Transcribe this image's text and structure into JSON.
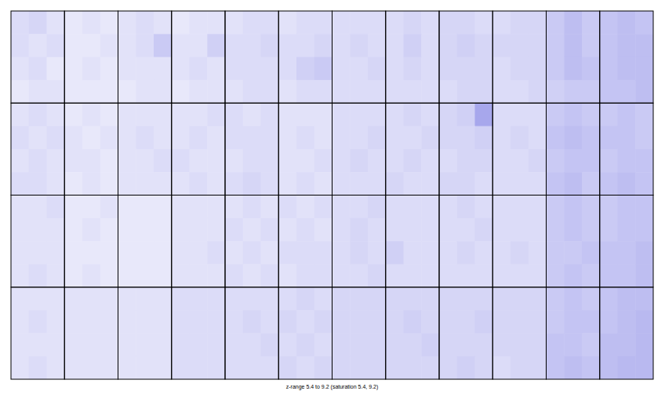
{
  "chart_data": {
    "type": "heatmap",
    "title": "z-range 5.4 to 9.2 (saturation 5.4, 9.2)",
    "zlim": [
      5.4,
      9.2
    ],
    "color": "#2020d0",
    "cells": [
      [
        [
          [
            6.0,
            6.1,
            5.9
          ],
          [
            6.0,
            5.9,
            6.0
          ],
          [
            5.9,
            6.0,
            5.8
          ],
          [
            5.8,
            5.9,
            5.9
          ]
        ],
        [
          [
            5.8,
            5.9,
            5.8
          ],
          [
            5.8,
            5.8,
            5.9
          ],
          [
            5.8,
            5.9,
            5.8
          ],
          [
            5.8,
            5.8,
            5.8
          ]
        ],
        [
          [
            5.9,
            6.0,
            5.9
          ],
          [
            5.9,
            6.0,
            6.3
          ],
          [
            5.9,
            5.9,
            5.9
          ],
          [
            5.8,
            5.9,
            5.9
          ]
        ],
        [
          [
            5.8,
            5.9,
            5.9
          ],
          [
            5.9,
            5.9,
            6.2
          ],
          [
            5.9,
            6.0,
            5.9
          ],
          [
            5.8,
            5.9,
            5.9
          ]
        ],
        [
          [
            5.9,
            6.0,
            6.0
          ],
          [
            6.0,
            6.0,
            6.1
          ],
          [
            6.0,
            6.0,
            6.0
          ],
          [
            5.9,
            6.0,
            6.0
          ]
        ],
        [
          [
            5.9,
            6.0,
            6.0
          ],
          [
            6.0,
            6.0,
            6.1
          ],
          [
            6.0,
            6.2,
            6.3
          ],
          [
            5.9,
            6.0,
            6.0
          ]
        ],
        [
          [
            6.0,
            6.0,
            6.0
          ],
          [
            6.0,
            6.1,
            6.0
          ],
          [
            6.0,
            6.0,
            6.1
          ],
          [
            6.0,
            6.0,
            6.0
          ]
        ],
        [
          [
            6.0,
            6.1,
            6.0
          ],
          [
            6.0,
            6.2,
            6.0
          ],
          [
            6.0,
            6.1,
            6.0
          ],
          [
            6.0,
            6.0,
            6.0
          ]
        ],
        [
          [
            6.1,
            6.1,
            6.0
          ],
          [
            6.1,
            6.2,
            6.1
          ],
          [
            6.1,
            6.1,
            6.1
          ],
          [
            6.0,
            6.1,
            6.1
          ]
        ],
        [
          [
            6.0,
            6.1,
            6.1
          ],
          [
            6.1,
            6.1,
            6.1
          ],
          [
            6.0,
            6.1,
            6.1
          ],
          [
            6.0,
            6.0,
            6.1
          ]
        ],
        [
          [
            6.3,
            6.5,
            6.3
          ],
          [
            6.3,
            6.5,
            6.3
          ],
          [
            6.3,
            6.5,
            6.4
          ],
          [
            6.2,
            6.3,
            6.3
          ]
        ],
        [
          [
            6.4,
            6.5,
            6.4
          ],
          [
            6.4,
            6.5,
            6.5
          ],
          [
            6.4,
            6.5,
            6.5
          ],
          [
            6.4,
            6.4,
            6.5
          ]
        ]
      ],
      [
        [
          [
            5.9,
            6.0,
            5.9
          ],
          [
            6.0,
            5.9,
            6.0
          ],
          [
            5.9,
            6.0,
            5.9
          ],
          [
            6.0,
            6.0,
            5.9
          ]
        ],
        [
          [
            5.8,
            5.9,
            5.8
          ],
          [
            5.9,
            5.8,
            5.9
          ],
          [
            5.9,
            5.9,
            5.8
          ],
          [
            5.8,
            5.9,
            5.8
          ]
        ],
        [
          [
            5.9,
            5.9,
            5.9
          ],
          [
            5.9,
            6.0,
            5.9
          ],
          [
            5.9,
            5.9,
            6.0
          ],
          [
            5.9,
            5.9,
            5.9
          ]
        ],
        [
          [
            5.9,
            5.9,
            6.0
          ],
          [
            5.9,
            6.0,
            5.9
          ],
          [
            6.0,
            5.9,
            5.9
          ],
          [
            5.9,
            6.0,
            5.9
          ]
        ],
        [
          [
            6.0,
            5.9,
            6.0
          ],
          [
            6.0,
            6.0,
            6.0
          ],
          [
            5.9,
            6.0,
            6.0
          ],
          [
            6.0,
            6.1,
            6.0
          ]
        ],
        [
          [
            5.9,
            5.9,
            5.9
          ],
          [
            5.9,
            6.0,
            5.9
          ],
          [
            5.9,
            5.9,
            6.0
          ],
          [
            5.9,
            6.0,
            5.9
          ]
        ],
        [
          [
            6.0,
            6.0,
            6.0
          ],
          [
            6.0,
            6.0,
            6.1
          ],
          [
            6.0,
            6.1,
            6.0
          ],
          [
            6.0,
            6.0,
            6.0
          ]
        ],
        [
          [
            6.0,
            6.1,
            6.0
          ],
          [
            6.0,
            6.0,
            6.1
          ],
          [
            6.0,
            6.1,
            6.0
          ],
          [
            6.1,
            6.0,
            6.0
          ]
        ],
        [
          [
            6.1,
            6.2,
            6.9
          ],
          [
            6.1,
            6.1,
            6.2
          ],
          [
            6.0,
            6.1,
            6.1
          ],
          [
            6.1,
            6.1,
            6.0
          ]
        ],
        [
          [
            6.0,
            6.0,
            6.0
          ],
          [
            6.0,
            6.1,
            6.0
          ],
          [
            6.0,
            6.0,
            6.1
          ],
          [
            6.0,
            6.0,
            6.0
          ]
        ],
        [
          [
            6.3,
            6.4,
            6.3
          ],
          [
            6.4,
            6.5,
            6.4
          ],
          [
            6.3,
            6.4,
            6.4
          ],
          [
            6.4,
            6.5,
            6.3
          ]
        ],
        [
          [
            6.3,
            6.4,
            6.3
          ],
          [
            6.4,
            6.4,
            6.3
          ],
          [
            6.3,
            6.4,
            6.4
          ],
          [
            6.4,
            6.5,
            6.4
          ]
        ]
      ],
      [
        [
          [
            5.9,
            5.9,
            6.0
          ],
          [
            5.9,
            5.9,
            5.9
          ],
          [
            5.9,
            5.9,
            5.9
          ],
          [
            5.9,
            6.0,
            5.9
          ]
        ],
        [
          [
            5.8,
            5.8,
            5.9
          ],
          [
            5.8,
            5.9,
            5.8
          ],
          [
            5.8,
            5.8,
            5.8
          ],
          [
            5.8,
            5.9,
            5.8
          ]
        ],
        [
          [
            5.8,
            5.8,
            5.8
          ],
          [
            5.8,
            5.8,
            5.8
          ],
          [
            5.8,
            5.8,
            5.8
          ],
          [
            5.8,
            5.8,
            5.8
          ]
        ],
        [
          [
            5.9,
            5.9,
            5.9
          ],
          [
            5.9,
            5.9,
            5.9
          ],
          [
            5.9,
            5.9,
            6.0
          ],
          [
            5.9,
            5.9,
            5.9
          ]
        ],
        [
          [
            5.9,
            6.0,
            5.9
          ],
          [
            6.0,
            5.9,
            6.0
          ],
          [
            5.9,
            6.0,
            5.9
          ],
          [
            6.0,
            5.9,
            6.0
          ]
        ],
        [
          [
            6.0,
            5.9,
            6.0
          ],
          [
            5.9,
            6.0,
            5.9
          ],
          [
            6.0,
            6.0,
            6.0
          ],
          [
            5.9,
            6.0,
            6.0
          ]
        ],
        [
          [
            6.0,
            6.0,
            6.1
          ],
          [
            6.0,
            6.1,
            6.0
          ],
          [
            6.0,
            6.1,
            6.0
          ],
          [
            6.0,
            6.0,
            6.1
          ]
        ],
        [
          [
            6.0,
            6.0,
            6.0
          ],
          [
            6.0,
            6.0,
            6.0
          ],
          [
            6.2,
            6.0,
            6.0
          ],
          [
            6.0,
            6.0,
            6.0
          ]
        ],
        [
          [
            6.0,
            6.1,
            6.0
          ],
          [
            6.0,
            6.0,
            6.1
          ],
          [
            6.0,
            6.1,
            6.0
          ],
          [
            6.0,
            6.0,
            6.0
          ]
        ],
        [
          [
            6.0,
            6.0,
            6.0
          ],
          [
            6.0,
            6.0,
            6.0
          ],
          [
            6.0,
            6.1,
            6.0
          ],
          [
            6.0,
            6.0,
            6.0
          ]
        ],
        [
          [
            6.3,
            6.4,
            6.3
          ],
          [
            6.3,
            6.4,
            6.3
          ],
          [
            6.3,
            6.3,
            6.4
          ],
          [
            6.3,
            6.4,
            6.3
          ]
        ],
        [
          [
            6.3,
            6.4,
            6.4
          ],
          [
            6.3,
            6.4,
            6.4
          ],
          [
            6.4,
            6.4,
            6.5
          ],
          [
            6.4,
            6.4,
            6.5
          ]
        ]
      ],
      [
        [
          [
            5.9,
            5.9,
            5.9
          ],
          [
            5.9,
            6.0,
            5.9
          ],
          [
            5.9,
            5.9,
            5.9
          ],
          [
            5.9,
            6.0,
            5.9
          ]
        ],
        [
          [
            5.9,
            5.9,
            5.9
          ],
          [
            5.9,
            5.9,
            5.9
          ],
          [
            5.9,
            5.9,
            5.9
          ],
          [
            5.9,
            5.9,
            5.9
          ]
        ],
        [
          [
            5.9,
            5.9,
            5.9
          ],
          [
            5.9,
            5.9,
            5.9
          ],
          [
            5.9,
            5.9,
            5.9
          ],
          [
            5.9,
            5.9,
            5.9
          ]
        ],
        [
          [
            6.0,
            6.0,
            6.0
          ],
          [
            6.0,
            6.0,
            6.0
          ],
          [
            6.0,
            6.0,
            6.0
          ],
          [
            6.0,
            6.0,
            6.0
          ]
        ],
        [
          [
            6.0,
            6.0,
            6.0
          ],
          [
            6.0,
            6.1,
            6.0
          ],
          [
            6.0,
            6.0,
            6.1
          ],
          [
            6.0,
            6.0,
            6.0
          ]
        ],
        [
          [
            6.0,
            6.1,
            6.0
          ],
          [
            6.1,
            6.0,
            6.1
          ],
          [
            6.0,
            6.1,
            6.0
          ],
          [
            6.1,
            6.0,
            6.1
          ]
        ],
        [
          [
            6.1,
            6.1,
            6.1
          ],
          [
            6.1,
            6.1,
            6.1
          ],
          [
            6.1,
            6.1,
            6.1
          ],
          [
            6.1,
            6.1,
            6.1
          ]
        ],
        [
          [
            6.1,
            6.1,
            6.1
          ],
          [
            6.1,
            6.2,
            6.1
          ],
          [
            6.1,
            6.1,
            6.2
          ],
          [
            6.1,
            6.1,
            6.1
          ]
        ],
        [
          [
            6.1,
            6.1,
            6.1
          ],
          [
            6.1,
            6.1,
            6.2
          ],
          [
            6.1,
            6.1,
            6.1
          ],
          [
            6.1,
            6.2,
            6.1
          ]
        ],
        [
          [
            6.1,
            6.1,
            6.1
          ],
          [
            6.1,
            6.1,
            6.1
          ],
          [
            6.1,
            6.1,
            6.1
          ],
          [
            6.0,
            6.1,
            6.1
          ]
        ],
        [
          [
            6.3,
            6.4,
            6.3
          ],
          [
            6.3,
            6.4,
            6.4
          ],
          [
            6.4,
            6.4,
            6.3
          ],
          [
            6.4,
            6.5,
            6.4
          ]
        ],
        [
          [
            6.4,
            6.5,
            6.5
          ],
          [
            6.4,
            6.5,
            6.6
          ],
          [
            6.5,
            6.5,
            6.6
          ],
          [
            6.5,
            6.6,
            6.6
          ]
        ]
      ]
    ]
  }
}
